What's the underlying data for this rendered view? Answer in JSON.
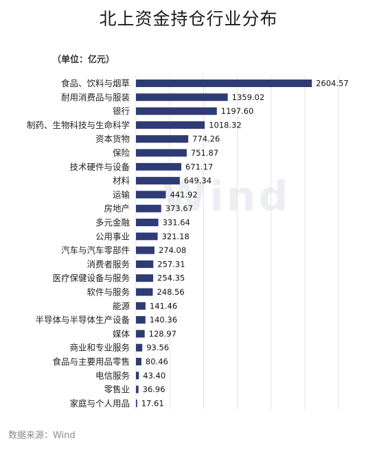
{
  "page": {
    "title": "北上资金持仓行业分布",
    "unit_label": "（单位：亿元）",
    "source": "数据来源：Wind",
    "watermark": "Wind"
  },
  "colors": {
    "bar": "#2f3b74",
    "grid": "#e2e2e2",
    "text": "#222222"
  },
  "chart_data": {
    "type": "bar",
    "orientation": "horizontal",
    "title": "北上资金持仓行业分布",
    "unit": "亿元",
    "categories": [
      "食品、饮料与烟草",
      "耐用消费品与服装",
      "银行",
      "制药、生物科技与生命科学",
      "资本货物",
      "保险",
      "技术硬件与设备",
      "材料",
      "运输",
      "房地产",
      "多元金融",
      "公用事业",
      "汽车与汽车零部件",
      "消费者服务",
      "医疗保健设备与服务",
      "软件与服务",
      "能源",
      "半导体与半导体生产设备",
      "媒体",
      "商业和专业服务",
      "食品与主要用品零售",
      "电信服务",
      "零售业",
      "家庭与个人用品"
    ],
    "values": [
      2604.57,
      1359.02,
      1197.6,
      1018.32,
      774.26,
      751.87,
      671.17,
      649.34,
      441.92,
      373.67,
      331.64,
      321.18,
      274.08,
      257.31,
      254.35,
      248.56,
      141.46,
      140.36,
      128.97,
      93.56,
      80.46,
      43.4,
      36.96,
      17.61
    ],
    "value_labels": [
      "2604.57",
      "1359.02",
      "1197.60",
      "1018.32",
      "774.26",
      "751.87",
      "671.17",
      "649.34",
      "441.92",
      "373.67",
      "331.64",
      "321.18",
      "274.08",
      "257.31",
      "254.35",
      "248.56",
      "141.46",
      "140.36",
      "128.97",
      "93.56",
      "80.46",
      "43.40",
      "36.96",
      "17.61"
    ],
    "xlim": [
      0,
      3000
    ],
    "grid": true,
    "legend": "none"
  }
}
